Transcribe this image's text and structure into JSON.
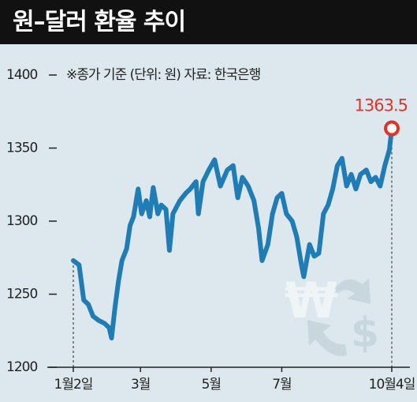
{
  "chart_data": {
    "type": "line",
    "title": "원–달러 환율 추이",
    "note": "※종가 기준 (단위: 원) 자료: 한국은행",
    "x": [
      2,
      7,
      11,
      15,
      19,
      24,
      29,
      33,
      35,
      38,
      41,
      44,
      48,
      51,
      54,
      58,
      61,
      65,
      68,
      71,
      75,
      78,
      82,
      85,
      88,
      94,
      99,
      103,
      108,
      110,
      114,
      119,
      124,
      129,
      135,
      140,
      144,
      148,
      153,
      158,
      162,
      165,
      170,
      174,
      178,
      182,
      186,
      191,
      195,
      199,
      201,
      206,
      210,
      214,
      218,
      222,
      226,
      230,
      234,
      238,
      242,
      246,
      250,
      255,
      259,
      263,
      267,
      271,
      275,
      277
    ],
    "values": [
      1273,
      1270,
      1246,
      1243,
      1235,
      1232,
      1230,
      1227,
      1220,
      1241,
      1259,
      1273,
      1281,
      1297,
      1303,
      1322,
      1305,
      1314,
      1303,
      1323,
      1305,
      1311,
      1308,
      1280,
      1305,
      1314,
      1319,
      1322,
      1327,
      1305,
      1327,
      1335,
      1342,
      1324,
      1335,
      1338,
      1316,
      1330,
      1324,
      1314,
      1295,
      1273,
      1284,
      1305,
      1316,
      1319,
      1305,
      1300,
      1289,
      1270,
      1262,
      1284,
      1276,
      1278,
      1305,
      1311,
      1322,
      1338,
      1343,
      1324,
      1332,
      1322,
      1332,
      1335,
      1327,
      1330,
      1324,
      1338,
      1349,
      1363.5
    ],
    "color": "#1f7cb5",
    "marker_color": "#e0342a",
    "xlim": [
      2,
      277
    ],
    "xticks": [
      {
        "value": 2,
        "label": "1월2일"
      },
      {
        "value": 60,
        "label": "3월"
      },
      {
        "value": 121,
        "label": "5월"
      },
      {
        "value": 182,
        "label": "7월"
      },
      {
        "value": 277,
        "label": "10월4일"
      }
    ],
    "ylim": [
      1200,
      1400
    ],
    "yticks": [
      1200,
      1250,
      1300,
      1350,
      1400
    ]
  }
}
